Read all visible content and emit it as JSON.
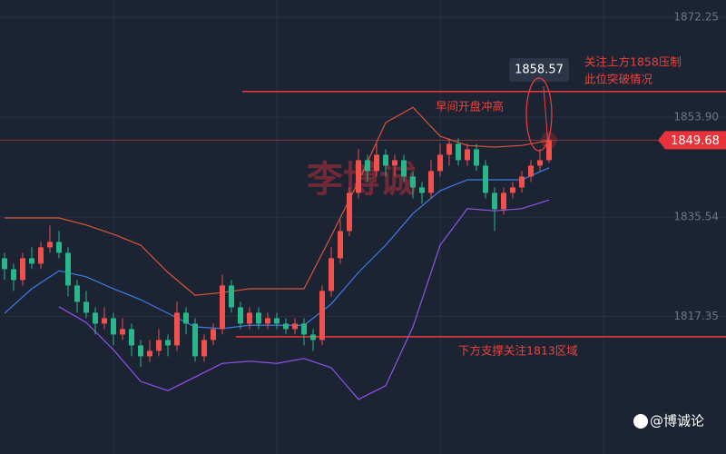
{
  "chart_data": {
    "type": "candlestick",
    "ylim": [
      1792.07,
      1875.4
    ],
    "yticks": [
      1872.25,
      {
        "value": 1853.9,
        "label": "1853.90"
      },
      1835.54,
      1817.35
    ],
    "grid": true,
    "up_color": "#f0524b",
    "down_color": "#2bb58a",
    "candles": [
      [
        1828,
        1829,
        1824,
        1826
      ],
      [
        1826,
        1827,
        1822,
        1824
      ],
      [
        1824,
        1829,
        1823,
        1828
      ],
      [
        1828,
        1830,
        1826,
        1827
      ],
      [
        1827,
        1831,
        1826,
        1830
      ],
      [
        1830,
        1834,
        1829,
        1831
      ],
      [
        1831,
        1833,
        1828,
        1829
      ],
      [
        1829,
        1830,
        1821,
        1823
      ],
      [
        1823,
        1824,
        1818,
        1820
      ],
      [
        1820,
        1822,
        1817,
        1818
      ],
      [
        1818,
        1819,
        1814,
        1816
      ],
      [
        1816,
        1819,
        1815,
        1817
      ],
      [
        1817,
        1818,
        1812,
        1814
      ],
      [
        1814,
        1817,
        1813,
        1815
      ],
      [
        1815,
        1816,
        1810,
        1812
      ],
      [
        1812,
        1813,
        1808,
        1810
      ],
      [
        1810,
        1813,
        1809,
        1811
      ],
      [
        1811,
        1815,
        1810,
        1813
      ],
      [
        1813,
        1814,
        1810,
        1812
      ],
      [
        1812,
        1820,
        1811,
        1818
      ],
      [
        1818,
        1819,
        1814,
        1816
      ],
      [
        1816,
        1817,
        1809,
        1810
      ],
      [
        1810,
        1814,
        1809,
        1813
      ],
      [
        1813,
        1816,
        1812,
        1815
      ],
      [
        1815,
        1825,
        1814,
        1823
      ],
      [
        1823,
        1824,
        1818,
        1819
      ],
      [
        1819,
        1820,
        1815,
        1816
      ],
      [
        1816,
        1819,
        1815,
        1818
      ],
      [
        1818,
        1819,
        1815,
        1816
      ],
      [
        1816,
        1818,
        1815,
        1817
      ],
      [
        1817,
        1818,
        1815,
        1816
      ],
      [
        1816,
        1817,
        1814,
        1815
      ],
      [
        1815,
        1817,
        1814,
        1816
      ],
      [
        1816,
        1817,
        1812,
        1814
      ],
      [
        1814,
        1815,
        1811,
        1813
      ],
      [
        1813,
        1823,
        1812,
        1822
      ],
      [
        1822,
        1830,
        1821,
        1828
      ],
      [
        1828,
        1835,
        1827,
        1833
      ],
      [
        1833,
        1841,
        1832,
        1840
      ],
      [
        1840,
        1848,
        1839,
        1846
      ],
      [
        1846,
        1847,
        1842,
        1844
      ],
      [
        1844,
        1849,
        1843,
        1847
      ],
      [
        1847,
        1848,
        1843,
        1845
      ],
      [
        1845,
        1847,
        1843,
        1846
      ],
      [
        1846,
        1847,
        1842,
        1843
      ],
      [
        1843,
        1844,
        1839,
        1841
      ],
      [
        1841,
        1842,
        1838,
        1840
      ],
      [
        1840,
        1846,
        1839,
        1844
      ],
      [
        1844,
        1849,
        1843,
        1847
      ],
      [
        1847,
        1850,
        1845,
        1849
      ],
      [
        1849,
        1850,
        1845,
        1846
      ],
      [
        1846,
        1849,
        1845,
        1848
      ],
      [
        1848,
        1849,
        1844,
        1845
      ],
      [
        1845,
        1846,
        1839,
        1840
      ],
      [
        1840,
        1841,
        1833,
        1837
      ],
      [
        1837,
        1841,
        1836,
        1840
      ],
      [
        1840,
        1842,
        1839,
        1841
      ],
      [
        1841,
        1844,
        1840,
        1843
      ],
      [
        1843,
        1846,
        1842,
        1845
      ],
      [
        1845,
        1848,
        1844,
        1846
      ],
      [
        1846,
        1850.5,
        1845.5,
        1849.68
      ]
    ],
    "series_x": [
      0,
      3,
      6,
      9,
      12,
      15,
      18,
      21,
      24,
      27,
      30,
      33,
      36,
      39,
      42,
      45,
      48,
      51,
      54,
      57,
      60
    ],
    "series": [
      {
        "color": "#d9553a",
        "values": [
          1835.4,
          1835.4,
          1835.4,
          1834.1,
          1832.4,
          1830.4,
          1825.4,
          1821.2,
          1821.7,
          1822.4,
          1822.4,
          1822.4,
          1832.1,
          1842.1,
          1852.9,
          1855.7,
          1850.4,
          1848.7,
          1848.4,
          1848.7,
          1849.6
        ]
      },
      {
        "color": "#3d7ee6",
        "values": [
          1817.9,
          1822.4,
          1825.7,
          1824.6,
          1822.4,
          1820.4,
          1817.9,
          1815.4,
          1815.1,
          1815.7,
          1815.7,
          1815.7,
          1819.6,
          1825.4,
          1830.4,
          1836.2,
          1840.4,
          1842.4,
          1842.4,
          1842.4,
          1844.6
        ]
      },
      {
        "color": "#8d55e8",
        "values": [
          null,
          null,
          1819.1,
          1816.2,
          1811.2,
          1805.4,
          1803.7,
          1806.2,
          1808.7,
          1809.1,
          1808.7,
          1809.6,
          1807.9,
          1802.1,
          1804.6,
          1815.4,
          1830.4,
          1837.1,
          1836.7,
          1837.1,
          1838.7
        ]
      }
    ],
    "levels": [
      {
        "value": 1858.6,
        "color": "#f03a3a"
      },
      {
        "value": 1813.6,
        "color": "#f03a3a"
      }
    ],
    "last_price": 1849.68,
    "popup_price": 1858.57,
    "annotations": [
      "关注上方1858压制",
      "此位突破情况",
      "早间开盘冲高",
      "下方支撑关注1813区域"
    ],
    "watermark": "李博诚",
    "logo": "@博诚论"
  }
}
